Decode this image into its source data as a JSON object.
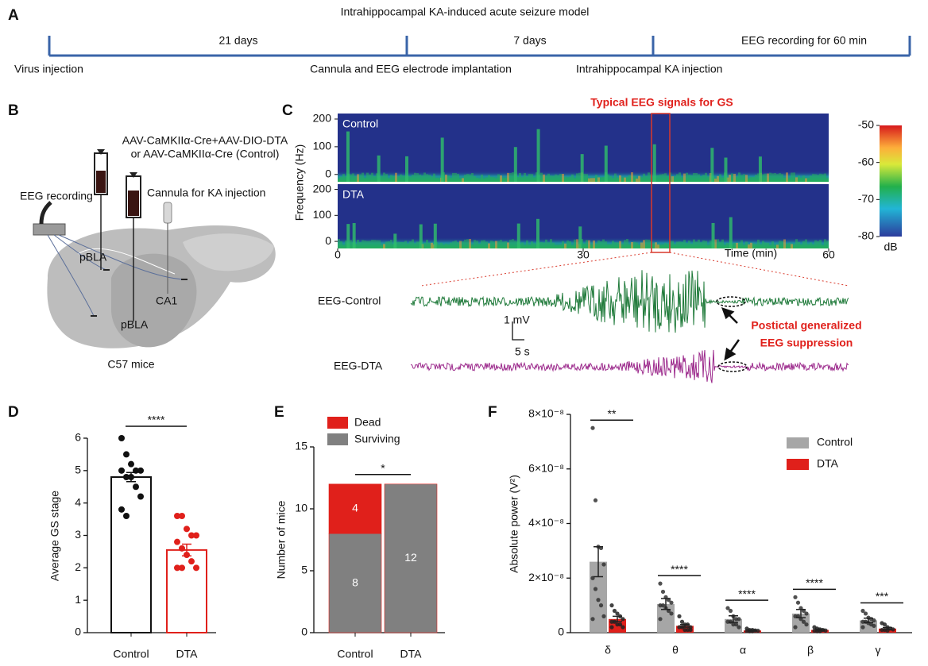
{
  "panel_a": {
    "letter": "A",
    "title": "Intrahippocampal KA-induced acute seizure model",
    "intervals": [
      "21 days",
      "7 days",
      "EEG recording for 60 min"
    ],
    "events": [
      "Virus injection",
      "Cannula and EEG electrode implantation",
      "Intrahippocampal KA injection"
    ]
  },
  "panel_b": {
    "letter": "B",
    "labels": [
      "AAV-CaMKIIα-Cre+AAV-DIO-DTA",
      "or AAV-CaMKIIα-Cre (Control)",
      "EEG recording",
      "Cannula for KA injection",
      "pBLA",
      "CA1",
      "pBLA",
      "C57 mice"
    ]
  },
  "panel_c": {
    "letter": "C",
    "title": "Typical EEG signals for GS",
    "ylabel": "Frequency (Hz)",
    "groups": [
      "Control",
      "DTA"
    ],
    "ylim": [
      -15,
      220
    ],
    "yticks": [
      0,
      100,
      200
    ],
    "xlabel": "Time (min)",
    "xlim": [
      0,
      60
    ],
    "xticks": [
      0,
      30,
      60
    ],
    "clim": [
      -80,
      -50
    ],
    "cticks": [
      -50,
      -60,
      -70,
      -80
    ],
    "clabel": "dB",
    "traces": [
      "EEG-Control",
      "EEG-DTA"
    ],
    "scale_v": "1 mV",
    "scale_t": "5 s",
    "annotation": [
      "Postictal generalized",
      "EEG suppression"
    ]
  },
  "chart_data": [
    {
      "letter": "D",
      "type": "bar",
      "categories": [
        "Control",
        "DTA"
      ],
      "values": [
        4.8,
        2.55
      ],
      "errors": [
        0.14,
        0.18
      ],
      "colors": [
        "#111111",
        "#e0201b"
      ],
      "points": [
        [
          6.0,
          5.5,
          5.2,
          5.0,
          5.0,
          5.0,
          4.8,
          4.8,
          4.5,
          4.2,
          3.8,
          3.6
        ],
        [
          3.6,
          3.6,
          3.2,
          3.0,
          3.0,
          2.8,
          2.6,
          2.4,
          2.2,
          2.0,
          2.0,
          2.0
        ]
      ],
      "ylabel": "Average GS stage",
      "ylim": [
        0,
        6
      ],
      "yticks": [
        0,
        1,
        2,
        3,
        4,
        5,
        6
      ],
      "significance": "****"
    },
    {
      "letter": "E",
      "type": "stacked_bar",
      "categories": [
        "Control",
        "DTA"
      ],
      "series": [
        {
          "name": "Surviving",
          "color": "#808080",
          "values": [
            8,
            12
          ]
        },
        {
          "name": "Dead",
          "color": "#e0201b",
          "values": [
            4,
            0
          ]
        }
      ],
      "ylabel": "Number of mice",
      "ylim": [
        0,
        15
      ],
      "yticks": [
        0,
        5,
        10,
        15
      ],
      "significance": "*",
      "legend": "upper left"
    },
    {
      "letter": "F",
      "type": "grouped_bar",
      "categories": [
        "δ",
        "θ",
        "α",
        "β",
        "γ"
      ],
      "series": [
        {
          "name": "Control",
          "color": "#a6a6a6",
          "values": [
            2.6e-08,
            1.05e-08,
            5e-09,
            7e-09,
            4.5e-09
          ],
          "errors": [
            5.5e-09,
            2e-09,
            1.2e-09,
            1.5e-09,
            8e-10
          ],
          "points": [
            [
              7.5e-08,
              4.85e-08,
              3.15e-08,
              3.1e-08,
              2.5e-08,
              2e-08,
              1.6e-08,
              1.2e-08,
              1e-08,
              6e-09,
              5e-09
            ],
            [
              1.8e-08,
              1.5e-08,
              1.3e-08,
              1.2e-08,
              1.1e-08,
              1e-08,
              1e-08,
              9e-09,
              8e-09,
              7e-09,
              5e-09
            ],
            [
              9e-09,
              8e-09,
              6e-09,
              5e-09,
              5e-09,
              4e-09,
              4e-09,
              3e-09,
              3e-09,
              2e-09
            ],
            [
              1.3e-08,
              1.1e-08,
              9e-09,
              8e-09,
              7e-09,
              6e-09,
              6e-09,
              5e-09,
              4e-09,
              3e-09,
              2e-09
            ],
            [
              8e-09,
              7e-09,
              5.5e-09,
              5e-09,
              4.5e-09,
              4e-09,
              4e-09,
              3.5e-09,
              3e-09,
              2.5e-09,
              2e-09
            ]
          ]
        },
        {
          "name": "DTA",
          "color": "#e0201b",
          "values": [
            5e-09,
            2.5e-09,
            8e-10,
            1e-09,
            1.5e-09
          ],
          "errors": [
            1e-09,
            5e-10,
            2e-10,
            3e-10,
            4e-10
          ],
          "points": [
            [
              1e-08,
              8e-09,
              7e-09,
              6e-09,
              5e-09,
              4e-09,
              4e-09,
              3e-09,
              3e-09,
              2e-09,
              2e-09
            ],
            [
              6e-09,
              4e-09,
              3e-09,
              3e-09,
              2e-09,
              2e-09,
              2e-09,
              1e-09,
              1e-09,
              1e-09
            ],
            [
              1.5e-09,
              1e-09,
              1e-09,
              8e-10,
              7e-10,
              6e-10,
              5e-10,
              5e-10
            ],
            [
              2e-09,
              1.5e-09,
              1.2e-09,
              1e-09,
              8e-10,
              7e-10,
              5e-10,
              5e-10
            ],
            [
              3.5e-09,
              3e-09,
              2e-09,
              1.5e-09,
              1.2e-09,
              1e-09,
              1e-09,
              8e-10
            ]
          ]
        }
      ],
      "ylabel": "Absolute power (V²)",
      "ylim": [
        0,
        8e-08
      ],
      "yticks": [
        0,
        {
          "value": 2e-08,
          "label": "2×10⁻⁸"
        },
        {
          "value": 4e-08,
          "label": "4×10⁻⁸"
        },
        {
          "value": 6e-08,
          "label": "6×10⁻⁸"
        },
        {
          "value": 8e-08,
          "label": "8×10⁻⁸"
        }
      ],
      "significance": [
        "**",
        "****",
        "****",
        "****",
        "***"
      ],
      "legend": "upper right"
    }
  ]
}
